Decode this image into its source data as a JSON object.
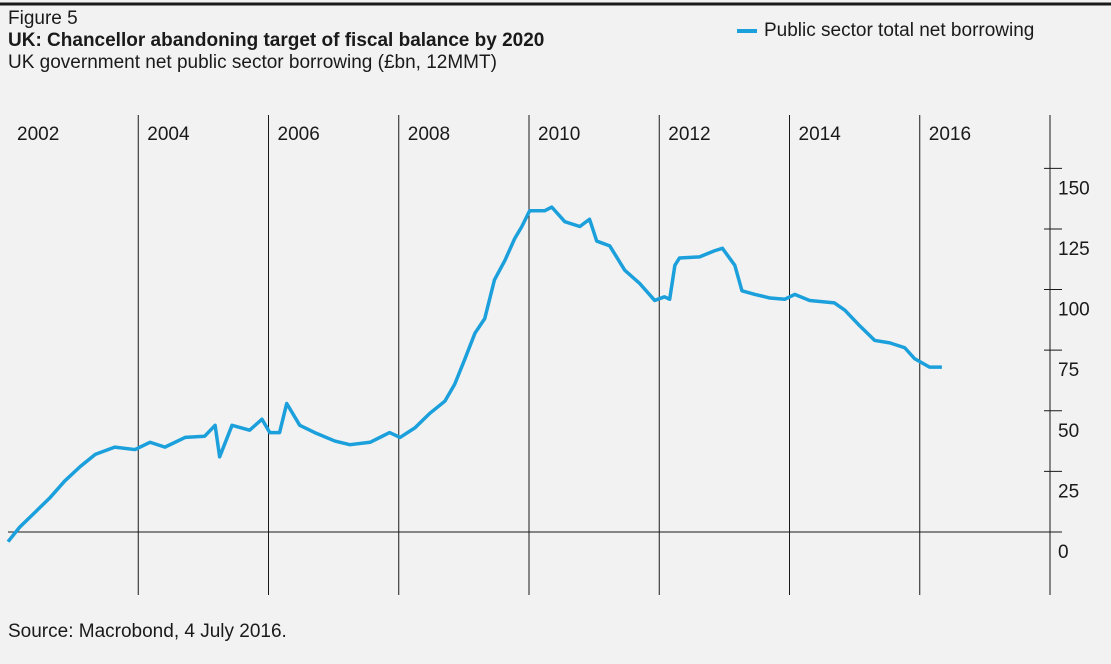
{
  "chart_data": {
    "type": "line",
    "figure_label": "Figure 5",
    "title": "UK: Chancellor abandoning target of fiscal balance by 2020",
    "subtitle": "UK government net public sector borrowing (£bn, 12MMT)",
    "source": "Source: Macrobond, 4 July 2016.",
    "legend_position": "top-right",
    "xlim": [
      2002,
      2018
    ],
    "xticks": [
      2002,
      2004,
      2006,
      2008,
      2010,
      2012,
      2014,
      2016
    ],
    "ylim": [
      -26,
      172
    ],
    "yticks": [
      0,
      25,
      50,
      75,
      100,
      125,
      150
    ],
    "grid": true,
    "series": [
      {
        "name": "Public sector total net borrowing",
        "color": "#1ca0dc",
        "x": [
          2002.0,
          2002.18,
          2002.41,
          2002.64,
          2002.87,
          2003.11,
          2003.34,
          2003.64,
          2003.95,
          2004.18,
          2004.41,
          2004.72,
          2005.02,
          2005.18,
          2005.25,
          2005.44,
          2005.71,
          2005.9,
          2006.02,
          2006.17,
          2006.28,
          2006.48,
          2006.71,
          2007.02,
          2007.25,
          2007.56,
          2007.86,
          2008.02,
          2008.25,
          2008.48,
          2008.71,
          2008.86,
          2009.01,
          2009.17,
          2009.32,
          2009.47,
          2009.63,
          2009.78,
          2009.89,
          2010.01,
          2010.24,
          2010.35,
          2010.55,
          2010.78,
          2010.93,
          2011.04,
          2011.24,
          2011.47,
          2011.7,
          2011.93,
          2012.08,
          2012.16,
          2012.24,
          2012.31,
          2012.62,
          2012.85,
          2012.97,
          2013.16,
          2013.27,
          2013.47,
          2013.7,
          2013.93,
          2014.08,
          2014.31,
          2014.69,
          2014.85,
          2015.08,
          2015.31,
          2015.54,
          2015.77,
          2015.92,
          2016.15,
          2016.34
        ],
        "values": [
          -4,
          2,
          8,
          14,
          21,
          27,
          32,
          35,
          34,
          37,
          35,
          39,
          39.5,
          44,
          31,
          44,
          42,
          46.5,
          41,
          41,
          53,
          44,
          41,
          37.5,
          36,
          37,
          41,
          39,
          43,
          49,
          54,
          61,
          71,
          82,
          88,
          104,
          112,
          121,
          126,
          132.5,
          132.5,
          134,
          128,
          126,
          129,
          120,
          118,
          108,
          102.5,
          95.5,
          97,
          96,
          110,
          113,
          113.5,
          116,
          117,
          110,
          99.5,
          98,
          96.5,
          96,
          98,
          95.5,
          94.5,
          91.5,
          85,
          79,
          78,
          76,
          71.5,
          68,
          68
        ]
      }
    ]
  }
}
